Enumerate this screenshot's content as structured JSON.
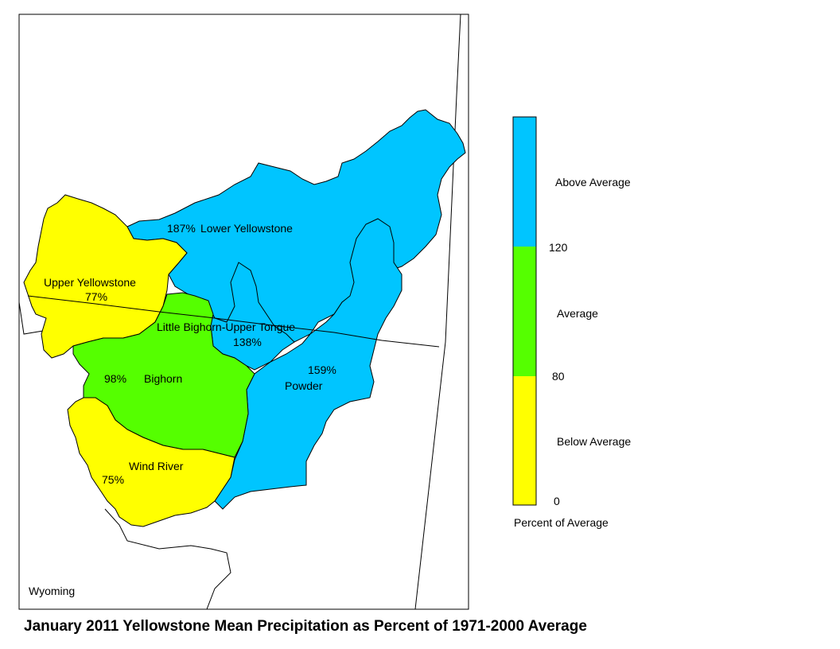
{
  "title": "January 2011 Yellowstone Mean Precipitation as Percent of 1971-2000 Average",
  "state_label": "Wyoming",
  "colors": {
    "above": "#00c5ff",
    "average": "#55ff00",
    "below": "#ffff00",
    "line": "#000000"
  },
  "basins": [
    {
      "id": "lower-yellowstone",
      "name": "Lower Yellowstone",
      "percent": "187%",
      "category": "above"
    },
    {
      "id": "upper-yellowstone",
      "name": "Upper Yellowstone",
      "percent": "77%",
      "category": "below"
    },
    {
      "id": "little-bighorn",
      "name": "Little Bighorn-Upper Tongue",
      "percent": "138%",
      "category": "above"
    },
    {
      "id": "powder",
      "name": "Powder",
      "percent": "159%",
      "category": "above"
    },
    {
      "id": "bighorn",
      "name": "Bighorn",
      "percent": "98%",
      "category": "average"
    },
    {
      "id": "wind-river",
      "name": "Wind River",
      "percent": "75%",
      "category": "below"
    }
  ],
  "legend": {
    "title": "Percent of Average",
    "classes": [
      {
        "label": "Above Average",
        "category": "above"
      },
      {
        "label": "Average",
        "category": "average"
      },
      {
        "label": "Below Average",
        "category": "below"
      }
    ],
    "breaks": [
      "120",
      "80",
      "0"
    ]
  }
}
